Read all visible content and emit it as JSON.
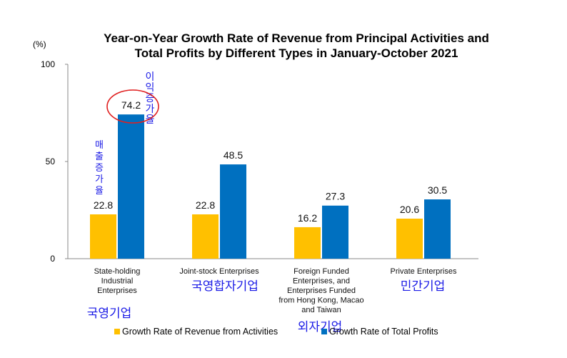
{
  "chart_data": {
    "type": "bar",
    "title": [
      "Year-on-Year Growth Rate of Revenue from Principal Activities  and",
      "Total Profits by Different Types in January-October 2021"
    ],
    "unit_label": "(%)",
    "ylim": [
      0,
      100
    ],
    "yticks": [
      0,
      50,
      100
    ],
    "categories": [
      [
        "State-holding",
        "Industrial",
        "Enterprises"
      ],
      [
        "Joint-stock Enterprises"
      ],
      [
        "Foreign Funded",
        "Enterprises, and",
        "Enterprises Funded",
        "from Hong Kong, Macao",
        "and Taiwan"
      ],
      [
        "Private Enterprises"
      ]
    ],
    "series": [
      {
        "name": "Growth Rate of Revenue from Activities",
        "color": "#FFC000",
        "values": [
          22.8,
          22.8,
          16.2,
          20.6
        ]
      },
      {
        "name": "Growth Rate of Total Profits",
        "color": "#0070C0",
        "values": [
          74.2,
          48.5,
          27.3,
          30.5
        ]
      }
    ],
    "legend_position": "bottom"
  },
  "annotations": {
    "category_notes": [
      "국영기업",
      "국영합자기업",
      "외자기업",
      "민간기업"
    ],
    "revenue_note": "매출증가율",
    "profit_note": "이익증가율",
    "note_color": "#1A1AE6",
    "circle_color": "#E02020"
  }
}
